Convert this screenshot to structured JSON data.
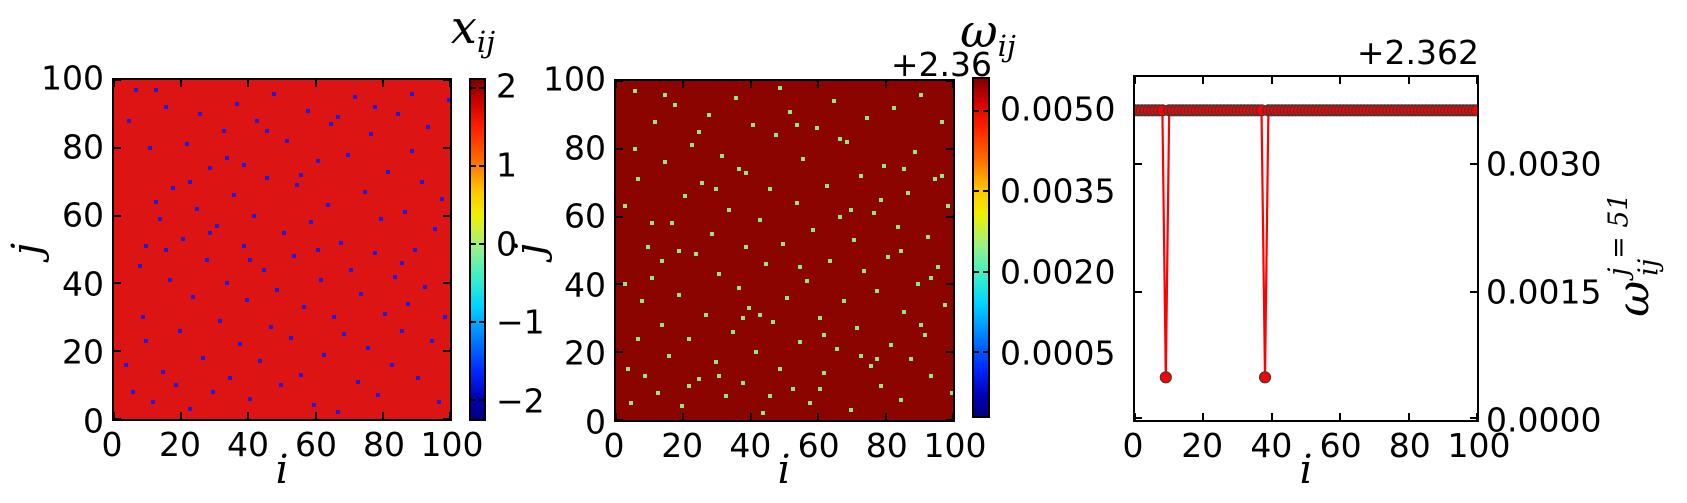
{
  "figure": {
    "background": "#ffffff",
    "frame_color": "#000000",
    "text_color": "#000000"
  },
  "chart_data": [
    {
      "id": "xij-heatmap",
      "type": "heatmap",
      "title_base": "x",
      "title_sub": "ij",
      "xlabel": "i",
      "ylabel": "j",
      "x_range": [
        0,
        100
      ],
      "y_range": [
        0,
        100
      ],
      "x_ticks": [
        0,
        20,
        40,
        60,
        80,
        100
      ],
      "x_tick_labels": [
        "0",
        "20",
        "40",
        "60",
        "80",
        "100"
      ],
      "y_ticks": [
        0,
        20,
        40,
        60,
        80,
        100
      ],
      "y_tick_labels": [
        "0",
        "20",
        "40",
        "60",
        "80",
        "100"
      ],
      "colormap": "jet",
      "colorbar": {
        "vmin": -2.25,
        "vmax": 2.1,
        "tick_values": [
          2,
          1,
          0,
          -1,
          -2
        ],
        "tick_labels": [
          "2",
          "1",
          "0",
          "−1",
          "−2"
        ]
      },
      "background_value_approx": 1.87,
      "background_color": "#dc1414",
      "dot_value_approx": -2.0,
      "dot_color": "#1d1de0",
      "dots": [
        [
          3,
          16
        ],
        [
          5,
          8
        ],
        [
          6,
          97
        ],
        [
          7,
          45
        ],
        [
          8,
          30
        ],
        [
          9,
          51
        ],
        [
          9,
          23
        ],
        [
          10,
          80
        ],
        [
          11,
          5
        ],
        [
          12,
          64
        ],
        [
          13,
          59
        ],
        [
          14,
          14
        ],
        [
          15,
          92
        ],
        [
          16,
          41
        ],
        [
          17,
          68
        ],
        [
          18,
          10
        ],
        [
          19,
          26
        ],
        [
          20,
          53
        ],
        [
          21,
          81
        ],
        [
          22,
          3
        ],
        [
          23,
          36
        ],
        [
          24,
          62
        ],
        [
          25,
          90
        ],
        [
          26,
          18
        ],
        [
          27,
          47
        ],
        [
          28,
          74
        ],
        [
          29,
          8
        ],
        [
          30,
          57
        ],
        [
          31,
          29
        ],
        [
          32,
          85
        ],
        [
          33,
          40
        ],
        [
          34,
          12
        ],
        [
          35,
          66
        ],
        [
          36,
          93
        ],
        [
          37,
          22
        ],
        [
          38,
          51
        ],
        [
          38,
          75
        ],
        [
          39,
          35
        ],
        [
          40,
          6
        ],
        [
          41,
          60
        ],
        [
          42,
          88
        ],
        [
          43,
          17
        ],
        [
          44,
          44
        ],
        [
          45,
          71
        ],
        [
          46,
          27
        ],
        [
          47,
          96
        ],
        [
          48,
          38
        ],
        [
          49,
          10
        ],
        [
          50,
          55
        ],
        [
          51,
          82
        ],
        [
          52,
          24
        ],
        [
          53,
          48
        ],
        [
          54,
          69
        ],
        [
          55,
          13
        ],
        [
          56,
          33
        ],
        [
          57,
          91
        ],
        [
          58,
          58
        ],
        [
          59,
          4
        ],
        [
          60,
          76
        ],
        [
          61,
          41
        ],
        [
          62,
          19
        ],
        [
          63,
          63
        ],
        [
          64,
          87
        ],
        [
          65,
          30
        ],
        [
          66,
          2
        ],
        [
          67,
          52
        ],
        [
          68,
          25
        ],
        [
          69,
          78
        ],
        [
          70,
          44
        ],
        [
          71,
          95
        ],
        [
          72,
          11
        ],
        [
          73,
          37
        ],
        [
          74,
          67
        ],
        [
          75,
          21
        ],
        [
          76,
          84
        ],
        [
          77,
          49
        ],
        [
          78,
          7
        ],
        [
          79,
          59
        ],
        [
          80,
          31
        ],
        [
          81,
          73
        ],
        [
          82,
          16
        ],
        [
          83,
          42
        ],
        [
          84,
          90
        ],
        [
          85,
          26
        ],
        [
          86,
          61
        ],
        [
          87,
          34
        ],
        [
          88,
          79
        ],
        [
          89,
          50
        ],
        [
          90,
          12
        ],
        [
          91,
          70
        ],
        [
          92,
          39
        ],
        [
          93,
          86
        ],
        [
          94,
          23
        ],
        [
          95,
          56
        ],
        [
          96,
          5
        ],
        [
          97,
          65
        ],
        [
          98,
          30
        ],
        [
          99,
          94
        ],
        [
          4,
          88
        ],
        [
          12,
          97
        ],
        [
          22,
          70
        ],
        [
          33,
          77
        ],
        [
          45,
          85
        ],
        [
          55,
          72
        ],
        [
          66,
          89
        ],
        [
          77,
          92
        ],
        [
          88,
          96
        ],
        [
          15,
          50
        ],
        [
          28,
          55
        ],
        [
          40,
          47
        ],
        [
          60,
          50
        ],
        [
          85,
          46
        ]
      ]
    },
    {
      "id": "wij-heatmap",
      "type": "heatmap",
      "title_base": "ω",
      "title_sub": "ij",
      "offset_text": "+2.36",
      "xlabel": "i",
      "ylabel": "j",
      "x_range": [
        0,
        100
      ],
      "y_range": [
        0,
        100
      ],
      "x_ticks": [
        0,
        20,
        40,
        60,
        80,
        100
      ],
      "x_tick_labels": [
        "0",
        "20",
        "40",
        "60",
        "80",
        "100"
      ],
      "y_ticks": [
        0,
        20,
        40,
        60,
        80,
        100
      ],
      "y_tick_labels": [
        "0",
        "20",
        "40",
        "60",
        "80",
        "100"
      ],
      "colormap": "jet",
      "colorbar": {
        "vmin": -0.0007,
        "vmax": 0.0056,
        "tick_values": [
          0.005,
          0.0035,
          0.002,
          0.0005
        ],
        "tick_labels": [
          "0.0050",
          "0.0035",
          "0.0020",
          "0.0005"
        ]
      },
      "background_value_approx": 2.3656,
      "background_color": "#8b0400",
      "dot_value_approx": 2.3625,
      "dot_color": "#8de87e",
      "dots": [
        [
          2,
          63
        ],
        [
          3,
          15
        ],
        [
          4,
          5
        ],
        [
          5,
          97
        ],
        [
          6,
          71
        ],
        [
          7,
          35
        ],
        [
          8,
          13
        ],
        [
          9,
          51
        ],
        [
          10,
          42
        ],
        [
          11,
          88
        ],
        [
          12,
          8
        ],
        [
          13,
          28
        ],
        [
          14,
          76
        ],
        [
          15,
          19
        ],
        [
          16,
          58
        ],
        [
          17,
          93
        ],
        [
          18,
          37
        ],
        [
          19,
          4
        ],
        [
          20,
          66
        ],
        [
          21,
          24
        ],
        [
          22,
          81
        ],
        [
          23,
          49
        ],
        [
          24,
          12
        ],
        [
          25,
          70
        ],
        [
          26,
          31
        ],
        [
          27,
          90
        ],
        [
          28,
          55
        ],
        [
          29,
          17
        ],
        [
          30,
          43
        ],
        [
          31,
          78
        ],
        [
          32,
          7
        ],
        [
          33,
          62
        ],
        [
          34,
          26
        ],
        [
          35,
          95
        ],
        [
          36,
          39
        ],
        [
          37,
          11
        ],
        [
          38,
          51
        ],
        [
          38,
          73
        ],
        [
          39,
          33
        ],
        [
          40,
          87
        ],
        [
          41,
          20
        ],
        [
          42,
          59
        ],
        [
          43,
          2
        ],
        [
          44,
          46
        ],
        [
          45,
          68
        ],
        [
          46,
          29
        ],
        [
          47,
          84
        ],
        [
          48,
          15
        ],
        [
          49,
          52
        ],
        [
          50,
          36
        ],
        [
          51,
          91
        ],
        [
          52,
          9
        ],
        [
          53,
          64
        ],
        [
          54,
          23
        ],
        [
          55,
          77
        ],
        [
          56,
          41
        ],
        [
          57,
          5
        ],
        [
          58,
          56
        ],
        [
          59,
          86
        ],
        [
          60,
          30
        ],
        [
          61,
          14
        ],
        [
          62,
          69
        ],
        [
          63,
          47
        ],
        [
          64,
          94
        ],
        [
          65,
          21
        ],
        [
          66,
          60
        ],
        [
          67,
          35
        ],
        [
          68,
          82
        ],
        [
          69,
          3
        ],
        [
          70,
          53
        ],
        [
          71,
          27
        ],
        [
          72,
          72
        ],
        [
          73,
          44
        ],
        [
          74,
          89
        ],
        [
          75,
          16
        ],
        [
          76,
          61
        ],
        [
          77,
          38
        ],
        [
          78,
          10
        ],
        [
          79,
          75
        ],
        [
          80,
          48
        ],
        [
          81,
          22
        ],
        [
          82,
          92
        ],
        [
          83,
          57
        ],
        [
          84,
          6
        ],
        [
          85,
          32
        ],
        [
          86,
          67
        ],
        [
          87,
          18
        ],
        [
          88,
          79
        ],
        [
          89,
          40
        ],
        [
          90,
          96
        ],
        [
          91,
          25
        ],
        [
          92,
          54
        ],
        [
          93,
          13
        ],
        [
          94,
          71
        ],
        [
          95,
          45
        ],
        [
          96,
          88
        ],
        [
          97,
          34
        ],
        [
          98,
          63
        ],
        [
          99,
          8
        ],
        [
          2,
          40
        ],
        [
          6,
          24
        ],
        [
          10,
          58
        ],
        [
          14,
          96
        ],
        [
          18,
          50
        ],
        [
          24,
          85
        ],
        [
          30,
          13
        ],
        [
          36,
          74
        ],
        [
          42,
          31
        ],
        [
          48,
          98
        ],
        [
          54,
          45
        ],
        [
          60,
          9
        ],
        [
          66,
          83
        ],
        [
          72,
          19
        ],
        [
          78,
          65
        ],
        [
          84,
          50
        ],
        [
          90,
          28
        ],
        [
          96,
          72
        ],
        [
          5,
          80
        ],
        [
          13,
          47
        ],
        [
          21,
          10
        ],
        [
          29,
          68
        ],
        [
          37,
          30
        ],
        [
          45,
          7
        ],
        [
          53,
          87
        ],
        [
          61,
          25
        ],
        [
          69,
          62
        ],
        [
          77,
          18
        ],
        [
          85,
          74
        ],
        [
          93,
          42
        ]
      ]
    },
    {
      "id": "wij-slice-j51",
      "type": "line",
      "offset_text": "+2.362",
      "xlabel": "i",
      "ylabel_base": "ω",
      "ylabel_sup": "j = 51",
      "ylabel_sub": "ij",
      "x_range": [
        0,
        100
      ],
      "x_step": 1,
      "y_range": [
        0,
        0.00402
      ],
      "x_ticks": [
        0,
        20,
        40,
        60,
        80,
        100
      ],
      "x_tick_labels": [
        "0",
        "20",
        "40",
        "60",
        "80",
        "100"
      ],
      "y_tick_values": [
        0.003,
        0.0015,
        0
      ],
      "y_tick_labels": [
        "0.0030",
        "0.0015",
        "0.0000"
      ],
      "baseline_value": 0.00363,
      "dip_value": 0.0005,
      "dips_at_i": [
        9,
        38
      ],
      "value_offset": 2.362,
      "line_color": "#ff0000",
      "marker_fill": "#ff0000",
      "marker_edge_color": "#3a3a3a",
      "legend": "none",
      "grid": "off"
    }
  ]
}
